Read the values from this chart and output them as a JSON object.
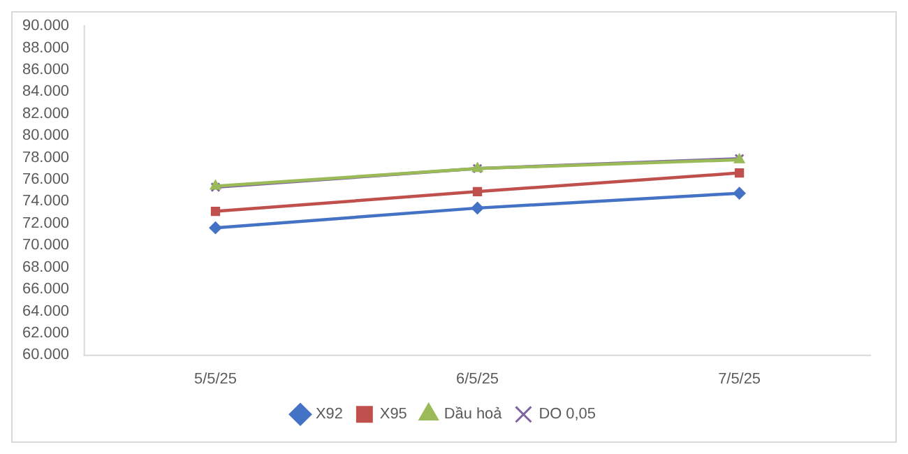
{
  "chart_data": {
    "type": "line",
    "categories": [
      "5/5/25",
      "6/5/25",
      "7/5/25"
    ],
    "series": [
      {
        "name": "X92",
        "color": "#4472c4",
        "marker": "diamond",
        "values": [
          71600,
          73400,
          74750
        ]
      },
      {
        "name": "X95",
        "color": "#c0504d",
        "marker": "square",
        "values": [
          73100,
          74900,
          76600
        ]
      },
      {
        "name": "Dầu hoả",
        "color": "#9bbb59",
        "marker": "triangle",
        "values": [
          75400,
          77000,
          77800
        ]
      },
      {
        "name": "DO 0,05",
        "color": "#8064a2",
        "marker": "cross",
        "values": [
          75300,
          77000,
          77900
        ]
      }
    ],
    "ylim": [
      60000,
      90000
    ],
    "yticks": [
      {
        "value": 60000,
        "label": "60.000"
      },
      {
        "value": 62000,
        "label": "62.000"
      },
      {
        "value": 64000,
        "label": "64.000"
      },
      {
        "value": 66000,
        "label": "66.000"
      },
      {
        "value": 68000,
        "label": "68.000"
      },
      {
        "value": 70000,
        "label": "70.000"
      },
      {
        "value": 72000,
        "label": "72.000"
      },
      {
        "value": 74000,
        "label": "74.000"
      },
      {
        "value": 76000,
        "label": "76.000"
      },
      {
        "value": 78000,
        "label": "78.000"
      },
      {
        "value": 80000,
        "label": "80.000"
      },
      {
        "value": 82000,
        "label": "82.000"
      },
      {
        "value": 84000,
        "label": "84.000"
      },
      {
        "value": 86000,
        "label": "86.000"
      },
      {
        "value": 88000,
        "label": "88.000"
      },
      {
        "value": 90000,
        "label": "90.000"
      }
    ],
    "grid": false,
    "legend": "bottom",
    "line_style": "solid"
  }
}
